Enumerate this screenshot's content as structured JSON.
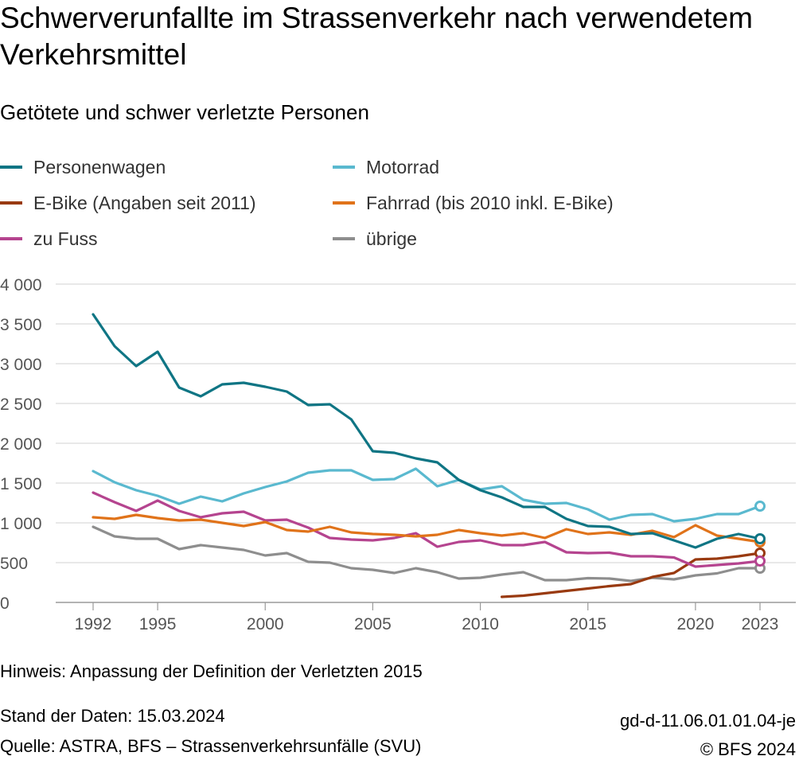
{
  "header": {
    "title": "Schwerverunfallte im Strassenverkehr nach verwendetem Verkehrsmittel",
    "subtitle": "Getötete und schwer verletzte Personen"
  },
  "footer": {
    "note": "Hinweis: Anpassung der Definition der Verletzten 2015",
    "stand": "Stand der Daten: 15.03.2024",
    "source": "Quelle: ASTRA, BFS – Strassenverkehrsunfälle (SVU)",
    "code": "gd-d-11.06.01.01.04-je",
    "copyright": "© BFS 2024"
  },
  "chart_data": {
    "type": "line",
    "title": "Schwerverunfallte im Strassenverkehr nach verwendetem Verkehrsmittel",
    "subtitle": "Getötete und schwer verletzte Personen",
    "xlabel": "",
    "ylabel": "",
    "xlim": [
      1992,
      2023
    ],
    "ylim": [
      0,
      4000
    ],
    "x_ticks": [
      1992,
      1995,
      2000,
      2005,
      2010,
      2015,
      2020,
      2023
    ],
    "y_ticks": [
      0,
      500,
      1000,
      1500,
      2000,
      2500,
      3000,
      3500,
      4000
    ],
    "y_tick_labels": [
      "0",
      "500",
      "1 000",
      "1 500",
      "2 000",
      "2 500",
      "3 000",
      "3 500",
      "4 000"
    ],
    "grid": true,
    "legend_position": "top",
    "series": [
      {
        "name": "Personenwagen",
        "color": "#0f7584",
        "start": 1992,
        "values": [
          3620,
          3220,
          2970,
          3150,
          2700,
          2590,
          2740,
          2760,
          2710,
          2650,
          2480,
          2490,
          2300,
          1900,
          1880,
          1810,
          1760,
          1540,
          1410,
          1320,
          1200,
          1200,
          1050,
          960,
          950,
          860,
          870,
          780,
          690,
          800,
          860,
          800
        ]
      },
      {
        "name": "Motorrad",
        "color": "#5ab9cf",
        "start": 1992,
        "values": [
          1650,
          1510,
          1410,
          1340,
          1240,
          1330,
          1270,
          1370,
          1450,
          1520,
          1630,
          1660,
          1660,
          1540,
          1550,
          1680,
          1460,
          1540,
          1420,
          1460,
          1290,
          1240,
          1250,
          1170,
          1040,
          1100,
          1110,
          1020,
          1050,
          1110,
          1110,
          1210
        ]
      },
      {
        "name": "E-Bike (Angaben seit 2011)",
        "color": "#993a10",
        "start": 2011,
        "values": [
          70,
          85,
          115,
          145,
          175,
          205,
          230,
          320,
          370,
          540,
          550,
          580,
          620
        ]
      },
      {
        "name": "Fahrrad (bis 2010 inkl. E-Bike)",
        "color": "#e0731a",
        "start": 1992,
        "values": [
          1070,
          1050,
          1100,
          1060,
          1030,
          1040,
          1000,
          960,
          1010,
          910,
          890,
          950,
          880,
          860,
          850,
          830,
          850,
          910,
          870,
          840,
          870,
          810,
          920,
          860,
          880,
          850,
          900,
          820,
          970,
          840,
          800,
          760
        ]
      },
      {
        "name": "zu Fuss",
        "color": "#b5448f",
        "start": 1992,
        "values": [
          1380,
          1260,
          1150,
          1280,
          1150,
          1070,
          1120,
          1140,
          1030,
          1040,
          940,
          810,
          790,
          780,
          810,
          870,
          700,
          760,
          780,
          720,
          720,
          760,
          630,
          620,
          625,
          580,
          580,
          565,
          450,
          470,
          490,
          520
        ]
      },
      {
        "name": "übrige",
        "color": "#8e8e8e",
        "start": 1992,
        "values": [
          950,
          830,
          800,
          800,
          670,
          720,
          690,
          660,
          590,
          620,
          510,
          500,
          430,
          410,
          370,
          430,
          380,
          300,
          310,
          350,
          380,
          280,
          280,
          305,
          300,
          270,
          310,
          290,
          340,
          365,
          430,
          430
        ]
      }
    ]
  }
}
